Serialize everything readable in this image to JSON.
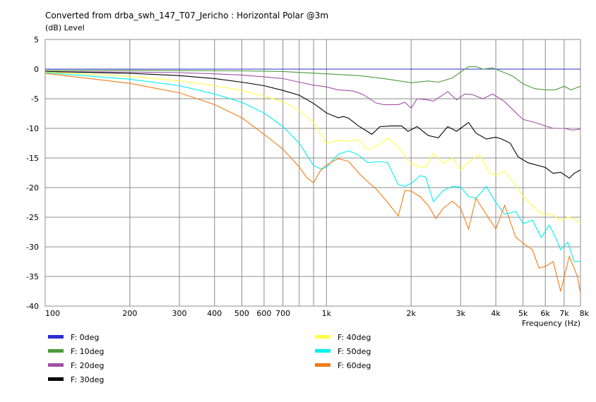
{
  "chart_data": {
    "type": "line",
    "title": "Converted from drba_swh_147_T07_Jericho : Horizontal Polar @3m",
    "y_unit_label": "(dB)  Level",
    "xlabel": "Frequency  (Hz)",
    "x_scale": "log",
    "xlim": [
      100,
      8000
    ],
    "ylim": [
      -40,
      5
    ],
    "grid": true,
    "legend_placement": "bottom",
    "x_ticks": [
      {
        "v": 100,
        "label": "100"
      },
      {
        "v": 200,
        "label": "200"
      },
      {
        "v": 300,
        "label": "300"
      },
      {
        "v": 400,
        "label": "400"
      },
      {
        "v": 500,
        "label": "500"
      },
      {
        "v": 600,
        "label": "600"
      },
      {
        "v": 700,
        "label": "700"
      },
      {
        "v": 1000,
        "label": "1k"
      },
      {
        "v": 2000,
        "label": "2k"
      },
      {
        "v": 3000,
        "label": "3k"
      },
      {
        "v": 4000,
        "label": "4k"
      },
      {
        "v": 5000,
        "label": "5k"
      },
      {
        "v": 6000,
        "label": "6k"
      },
      {
        "v": 7000,
        "label": "7k"
      },
      {
        "v": 8000,
        "label": "8k"
      }
    ],
    "y_ticks": [
      5,
      0,
      -5,
      -10,
      -15,
      -20,
      -25,
      -30,
      -35,
      -40
    ],
    "grid_lines_x": [
      100,
      200,
      300,
      400,
      500,
      600,
      700,
      800,
      900,
      1000,
      2000,
      3000,
      4000,
      5000,
      6000,
      7000,
      8000
    ],
    "series": [
      {
        "name": "F: 0deg",
        "color": "#2b2bd0",
        "points": [
          [
            100,
            0
          ],
          [
            8000,
            0
          ]
        ]
      },
      {
        "name": "F: 10deg",
        "color": "#4c9a3c",
        "points": [
          [
            100,
            -0.2
          ],
          [
            200,
            -0.2
          ],
          [
            500,
            -0.3
          ],
          [
            700,
            -0.4
          ],
          [
            1000,
            -0.8
          ],
          [
            1300,
            -1.1
          ],
          [
            1600,
            -1.6
          ],
          [
            2000,
            -2.3
          ],
          [
            2300,
            -2.0
          ],
          [
            2500,
            -2.2
          ],
          [
            2800,
            -1.5
          ],
          [
            3000,
            -0.5
          ],
          [
            3200,
            0.4
          ],
          [
            3400,
            0.4
          ],
          [
            3600,
            0.0
          ],
          [
            3900,
            0.2
          ],
          [
            4200,
            -0.4
          ],
          [
            4600,
            -1.2
          ],
          [
            5000,
            -2.5
          ],
          [
            5500,
            -3.3
          ],
          [
            6000,
            -3.5
          ],
          [
            6500,
            -3.5
          ],
          [
            7000,
            -2.9
          ],
          [
            7400,
            -3.5
          ],
          [
            8000,
            -2.9
          ]
        ]
      },
      {
        "name": "F: 20deg",
        "color": "#a050a8",
        "points": [
          [
            100,
            -0.4
          ],
          [
            200,
            -0.5
          ],
          [
            300,
            -0.6
          ],
          [
            400,
            -0.8
          ],
          [
            500,
            -1.0
          ],
          [
            600,
            -1.3
          ],
          [
            700,
            -1.6
          ],
          [
            800,
            -2.2
          ],
          [
            900,
            -2.7
          ],
          [
            1000,
            -3.0
          ],
          [
            1100,
            -3.5
          ],
          [
            1250,
            -3.7
          ],
          [
            1350,
            -4.3
          ],
          [
            1500,
            -5.7
          ],
          [
            1600,
            -6.0
          ],
          [
            1800,
            -6.0
          ],
          [
            1900,
            -5.6
          ],
          [
            2000,
            -6.6
          ],
          [
            2100,
            -5.0
          ],
          [
            2300,
            -5.2
          ],
          [
            2400,
            -5.4
          ],
          [
            2700,
            -3.8
          ],
          [
            2900,
            -5.2
          ],
          [
            3100,
            -4.2
          ],
          [
            3300,
            -4.3
          ],
          [
            3600,
            -5.0
          ],
          [
            3900,
            -4.2
          ],
          [
            4300,
            -5.5
          ],
          [
            4700,
            -7.3
          ],
          [
            5000,
            -8.5
          ],
          [
            5500,
            -9.0
          ],
          [
            6000,
            -9.6
          ],
          [
            6400,
            -10.0
          ],
          [
            7000,
            -10.0
          ],
          [
            7500,
            -10.3
          ],
          [
            8000,
            -10.1
          ]
        ]
      },
      {
        "name": "F: 30deg",
        "color": "#000000",
        "points": [
          [
            100,
            -0.4
          ],
          [
            200,
            -0.7
          ],
          [
            300,
            -1.1
          ],
          [
            400,
            -1.6
          ],
          [
            500,
            -2.2
          ],
          [
            600,
            -2.8
          ],
          [
            700,
            -3.6
          ],
          [
            800,
            -4.4
          ],
          [
            900,
            -5.8
          ],
          [
            950,
            -6.6
          ],
          [
            1000,
            -7.4
          ],
          [
            1100,
            -8.2
          ],
          [
            1150,
            -8.0
          ],
          [
            1200,
            -8.3
          ],
          [
            1300,
            -9.6
          ],
          [
            1450,
            -11.0
          ],
          [
            1550,
            -9.7
          ],
          [
            1700,
            -9.6
          ],
          [
            1850,
            -9.6
          ],
          [
            1950,
            -10.5
          ],
          [
            2100,
            -9.7
          ],
          [
            2300,
            -11.2
          ],
          [
            2500,
            -11.6
          ],
          [
            2700,
            -9.7
          ],
          [
            2900,
            -10.5
          ],
          [
            3000,
            -10.0
          ],
          [
            3200,
            -9.0
          ],
          [
            3400,
            -10.8
          ],
          [
            3700,
            -11.8
          ],
          [
            4000,
            -11.5
          ],
          [
            4200,
            -11.8
          ],
          [
            4500,
            -12.5
          ],
          [
            4800,
            -14.8
          ],
          [
            5200,
            -15.8
          ],
          [
            6000,
            -16.6
          ],
          [
            6400,
            -17.6
          ],
          [
            6800,
            -17.4
          ],
          [
            7300,
            -18.4
          ],
          [
            7600,
            -17.6
          ],
          [
            8000,
            -17.0
          ]
        ]
      },
      {
        "name": "F: 40deg",
        "color": "#ffff44",
        "points": [
          [
            100,
            -0.5
          ],
          [
            200,
            -1.2
          ],
          [
            300,
            -2.0
          ],
          [
            400,
            -2.8
          ],
          [
            500,
            -3.6
          ],
          [
            600,
            -4.6
          ],
          [
            700,
            -5.5
          ],
          [
            800,
            -7.0
          ],
          [
            900,
            -9.0
          ],
          [
            1000,
            -12.6
          ],
          [
            1100,
            -12.0
          ],
          [
            1200,
            -12.2
          ],
          [
            1300,
            -11.9
          ],
          [
            1400,
            -13.6
          ],
          [
            1550,
            -12.7
          ],
          [
            1650,
            -11.6
          ],
          [
            1800,
            -13.2
          ],
          [
            2000,
            -16.0
          ],
          [
            2150,
            -16.5
          ],
          [
            2250,
            -16.6
          ],
          [
            2400,
            -14.2
          ],
          [
            2600,
            -15.9
          ],
          [
            2800,
            -15.0
          ],
          [
            3000,
            -17.0
          ],
          [
            3300,
            -15.2
          ],
          [
            3500,
            -14.5
          ],
          [
            3800,
            -17.5
          ],
          [
            4000,
            -17.9
          ],
          [
            4300,
            -17.2
          ],
          [
            4700,
            -19.6
          ],
          [
            5000,
            -21.5
          ],
          [
            5400,
            -23.0
          ],
          [
            5800,
            -24.5
          ],
          [
            6300,
            -24.5
          ],
          [
            6800,
            -25.5
          ],
          [
            7300,
            -24.9
          ],
          [
            8000,
            -26.0
          ]
        ]
      },
      {
        "name": "F: 50deg",
        "color": "#00f0f0",
        "points": [
          [
            100,
            -0.6
          ],
          [
            200,
            -1.7
          ],
          [
            300,
            -2.8
          ],
          [
            400,
            -4.2
          ],
          [
            500,
            -5.6
          ],
          [
            600,
            -7.4
          ],
          [
            700,
            -9.7
          ],
          [
            800,
            -12.5
          ],
          [
            900,
            -16.3
          ],
          [
            950,
            -16.8
          ],
          [
            1000,
            -16.6
          ],
          [
            1100,
            -14.4
          ],
          [
            1200,
            -13.8
          ],
          [
            1300,
            -14.5
          ],
          [
            1400,
            -15.8
          ],
          [
            1550,
            -15.6
          ],
          [
            1650,
            -15.8
          ],
          [
            1800,
            -19.5
          ],
          [
            1900,
            -19.8
          ],
          [
            2000,
            -19.3
          ],
          [
            2150,
            -18.0
          ],
          [
            2250,
            -18.2
          ],
          [
            2400,
            -22.4
          ],
          [
            2600,
            -20.5
          ],
          [
            2800,
            -19.8
          ],
          [
            3000,
            -19.9
          ],
          [
            3200,
            -21.5
          ],
          [
            3400,
            -21.8
          ],
          [
            3700,
            -19.8
          ],
          [
            4000,
            -22.5
          ],
          [
            4300,
            -24.5
          ],
          [
            4700,
            -24.0
          ],
          [
            5000,
            -26.1
          ],
          [
            5400,
            -25.5
          ],
          [
            5800,
            -28.4
          ],
          [
            6200,
            -26.3
          ],
          [
            6500,
            -28.3
          ],
          [
            6800,
            -30.5
          ],
          [
            7200,
            -29.2
          ],
          [
            7600,
            -32.5
          ],
          [
            8000,
            -32.4
          ]
        ]
      },
      {
        "name": "F: 60deg",
        "color": "#f07c18",
        "points": [
          [
            100,
            -0.7
          ],
          [
            200,
            -2.4
          ],
          [
            300,
            -4.0
          ],
          [
            400,
            -6.0
          ],
          [
            500,
            -8.2
          ],
          [
            600,
            -11.0
          ],
          [
            700,
            -13.5
          ],
          [
            800,
            -16.5
          ],
          [
            850,
            -18.3
          ],
          [
            900,
            -19.2
          ],
          [
            950,
            -17.2
          ],
          [
            1000,
            -16.2
          ],
          [
            1100,
            -15.1
          ],
          [
            1200,
            -15.6
          ],
          [
            1300,
            -17.5
          ],
          [
            1400,
            -19.0
          ],
          [
            1500,
            -20.2
          ],
          [
            1650,
            -22.5
          ],
          [
            1800,
            -24.8
          ],
          [
            1900,
            -20.5
          ],
          [
            2000,
            -20.6
          ],
          [
            2150,
            -21.5
          ],
          [
            2300,
            -23.0
          ],
          [
            2450,
            -25.2
          ],
          [
            2600,
            -23.5
          ],
          [
            2800,
            -22.3
          ],
          [
            3000,
            -23.5
          ],
          [
            3200,
            -27.0
          ],
          [
            3400,
            -21.8
          ],
          [
            3700,
            -24.5
          ],
          [
            4000,
            -27.0
          ],
          [
            4300,
            -23.0
          ],
          [
            4700,
            -28.3
          ],
          [
            5000,
            -29.4
          ],
          [
            5400,
            -30.5
          ],
          [
            5700,
            -33.6
          ],
          [
            6000,
            -33.3
          ],
          [
            6400,
            -32.5
          ],
          [
            6800,
            -37.5
          ],
          [
            7300,
            -31.6
          ],
          [
            7800,
            -35.0
          ],
          [
            8000,
            -37.8
          ]
        ]
      }
    ]
  }
}
